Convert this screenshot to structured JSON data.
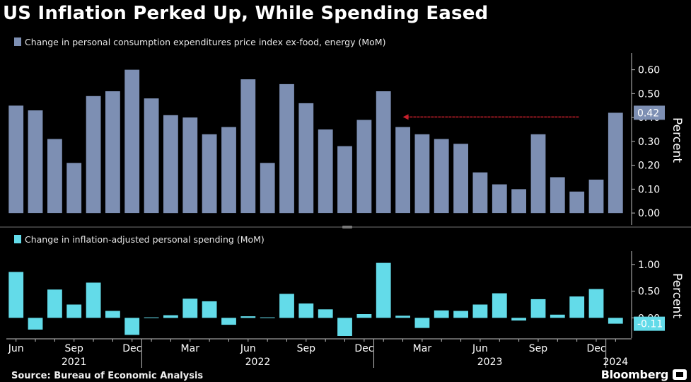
{
  "title": "US Inflation Perked Up, While Spending Eased",
  "source": "Source: Bureau of Economic Analysis",
  "brand": "Bloomberg",
  "colors": {
    "background": "#000000",
    "pce_bar": "#7d8fb3",
    "spending_bar": "#63dbe9",
    "arrow": "#c8202c",
    "axis": "#bfbfbf",
    "divider": "#3a3a3a"
  },
  "chart_data": [
    {
      "type": "bar",
      "legend": "Change in personal consumption expenditures price index ex-food, energy (MoM)",
      "ylabel": "Percent",
      "ylim": [
        -0.05,
        0.67
      ],
      "yticks": [
        "0.00",
        "0.10",
        "0.20",
        "0.30",
        "0.40",
        "0.50",
        "0.60"
      ],
      "last_value_label": "0.42",
      "annotation": "arrow pointing left toward the Jan 2023 bar",
      "categories": [
        "2021-06",
        "2021-07",
        "2021-08",
        "2021-09",
        "2021-10",
        "2021-11",
        "2021-12",
        "2022-01",
        "2022-02",
        "2022-03",
        "2022-04",
        "2022-05",
        "2022-06",
        "2022-07",
        "2022-08",
        "2022-09",
        "2022-10",
        "2022-11",
        "2022-12",
        "2023-01",
        "2023-02",
        "2023-03",
        "2023-04",
        "2023-05",
        "2023-06",
        "2023-07",
        "2023-08",
        "2023-09",
        "2023-10",
        "2023-11",
        "2023-12",
        "2024-01"
      ],
      "values": [
        0.45,
        0.43,
        0.31,
        0.21,
        0.49,
        0.51,
        0.6,
        0.48,
        0.41,
        0.4,
        0.33,
        0.36,
        0.56,
        0.21,
        0.54,
        0.46,
        0.35,
        0.28,
        0.39,
        0.51,
        0.36,
        0.33,
        0.31,
        0.29,
        0.17,
        0.12,
        0.1,
        0.33,
        0.15,
        0.09,
        0.14,
        0.42
      ]
    },
    {
      "type": "bar",
      "legend": "Change in inflation-adjusted personal spending (MoM)",
      "ylabel": "Percent",
      "ylim": [
        -0.38,
        1.25
      ],
      "yticks": [
        "1.00",
        "0.50",
        "0.00"
      ],
      "last_value_label": "-0.11",
      "categories": [
        "2021-06",
        "2021-07",
        "2021-08",
        "2021-09",
        "2021-10",
        "2021-11",
        "2021-12",
        "2022-01",
        "2022-02",
        "2022-03",
        "2022-04",
        "2022-05",
        "2022-06",
        "2022-07",
        "2022-08",
        "2022-09",
        "2022-10",
        "2022-11",
        "2022-12",
        "2023-01",
        "2023-02",
        "2023-03",
        "2023-04",
        "2023-05",
        "2023-06",
        "2023-07",
        "2023-08",
        "2023-09",
        "2023-10",
        "2023-11",
        "2023-12",
        "2024-01"
      ],
      "values": [
        0.86,
        -0.22,
        0.53,
        0.25,
        0.66,
        0.13,
        -0.32,
        0.01,
        0.05,
        0.36,
        0.31,
        -0.13,
        0.03,
        0.01,
        0.45,
        0.27,
        0.16,
        -0.34,
        0.07,
        1.03,
        0.04,
        -0.19,
        0.14,
        0.13,
        0.25,
        0.46,
        -0.05,
        0.35,
        0.06,
        0.4,
        0.54,
        -0.11
      ]
    }
  ],
  "xaxis": {
    "month_labels": [
      {
        "label": "Jun",
        "index": 0
      },
      {
        "label": "Sep",
        "index": 3
      },
      {
        "label": "Dec",
        "index": 6
      },
      {
        "label": "Mar",
        "index": 9
      },
      {
        "label": "Jun",
        "index": 12
      },
      {
        "label": "Sep",
        "index": 15
      },
      {
        "label": "Dec",
        "index": 18
      },
      {
        "label": "Mar",
        "index": 21
      },
      {
        "label": "Jun",
        "index": 24
      },
      {
        "label": "Sep",
        "index": 27
      },
      {
        "label": "Dec",
        "index": 30
      }
    ],
    "year_labels": [
      {
        "label": "2021",
        "from": 0,
        "to": 6
      },
      {
        "label": "2022",
        "from": 7,
        "to": 18
      },
      {
        "label": "2023",
        "from": 19,
        "to": 30
      },
      {
        "label": "2024",
        "from": 31,
        "to": 31
      }
    ]
  }
}
